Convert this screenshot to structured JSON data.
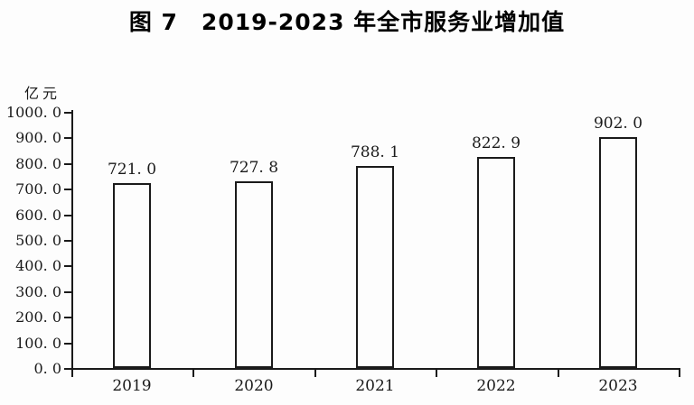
{
  "page": {
    "background": "#fdfdfd",
    "ink_color": "#1a1a1a"
  },
  "title": {
    "text": "图 7　2019-2023 年全市服务业增加值"
  },
  "chart_data": {
    "type": "bar",
    "title": "图 7　2019-2023 年全市服务业增加值",
    "unit_label": "亿元",
    "categories": [
      "2019",
      "2020",
      "2021",
      "2022",
      "2023"
    ],
    "values": [
      721.0,
      727.8,
      788.1,
      822.9,
      902.0
    ],
    "value_labels": [
      "721. 0",
      "727. 8",
      "788. 1",
      "822. 9",
      "902. 0"
    ],
    "xlabel": "",
    "ylabel": "亿元",
    "ylim": [
      0,
      1000
    ],
    "y_tick_step": 100,
    "y_tick_labels": [
      "0. 0",
      "100. 0",
      "200. 0",
      "300. 0",
      "400. 0",
      "500. 0",
      "600. 0",
      "700. 0",
      "800. 0",
      "900. 0",
      "1000. 0"
    ],
    "grid": false,
    "legend": "none",
    "bar_fill": "#fdfdfd",
    "bar_border": "#1a1a1a"
  }
}
